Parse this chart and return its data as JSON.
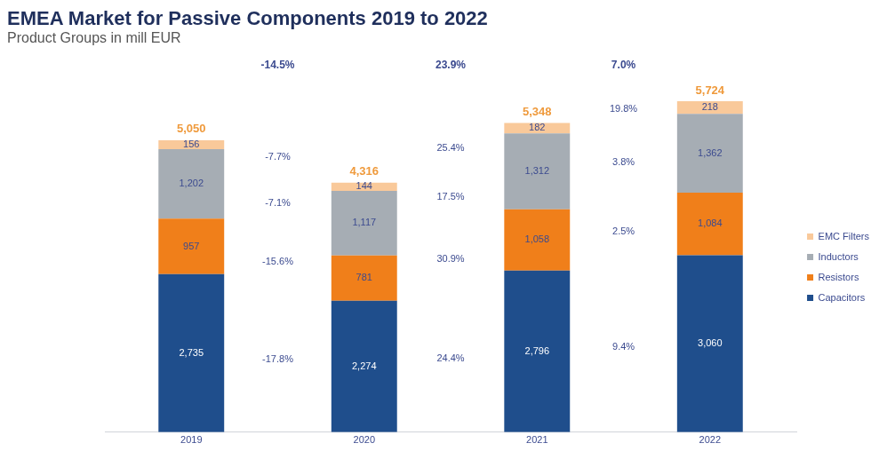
{
  "chart_data": {
    "type": "bar",
    "title": "EMEA Market for Passive Components 2019 to 2022",
    "subtitle": "Product Groups in mill EUR",
    "categories": [
      "2019",
      "2020",
      "2021",
      "2022"
    ],
    "stacked": true,
    "legend": "right",
    "grid": false,
    "series": [
      {
        "name": "Capacitors",
        "color": "#1f4e8c",
        "values": [
          2735,
          2274,
          2796,
          3060
        ],
        "value_labels": [
          "2,735",
          "2,274",
          "2,796",
          "3,060"
        ]
      },
      {
        "name": "Resistors",
        "color": "#f07f1a",
        "values": [
          957,
          781,
          1058,
          1084
        ],
        "value_labels": [
          "957",
          "781",
          "1,058",
          "1,084"
        ]
      },
      {
        "name": "Inductors",
        "color": "#a6adb4",
        "values": [
          1202,
          1117,
          1312,
          1362
        ],
        "value_labels": [
          "1,202",
          "1,117",
          "1,312",
          "1,362"
        ]
      },
      {
        "name": "EMC Filters",
        "color": "#f9c99a",
        "values": [
          156,
          144,
          182,
          218
        ],
        "value_labels": [
          "156",
          "144",
          "182",
          "218"
        ]
      }
    ],
    "totals": [
      "5,050",
      "4,316",
      "5,348",
      "5,724"
    ],
    "annotations": [
      "-14.5%",
      "23.9%",
      "7.0%",
      "-17.8%",
      "-15.6%",
      "-7.1%",
      "-7.7%",
      "24.4%",
      "30.9%",
      "17.5%",
      "25.4%",
      "9.4%",
      "2.5%",
      "3.8%",
      "19.8%"
    ]
  }
}
